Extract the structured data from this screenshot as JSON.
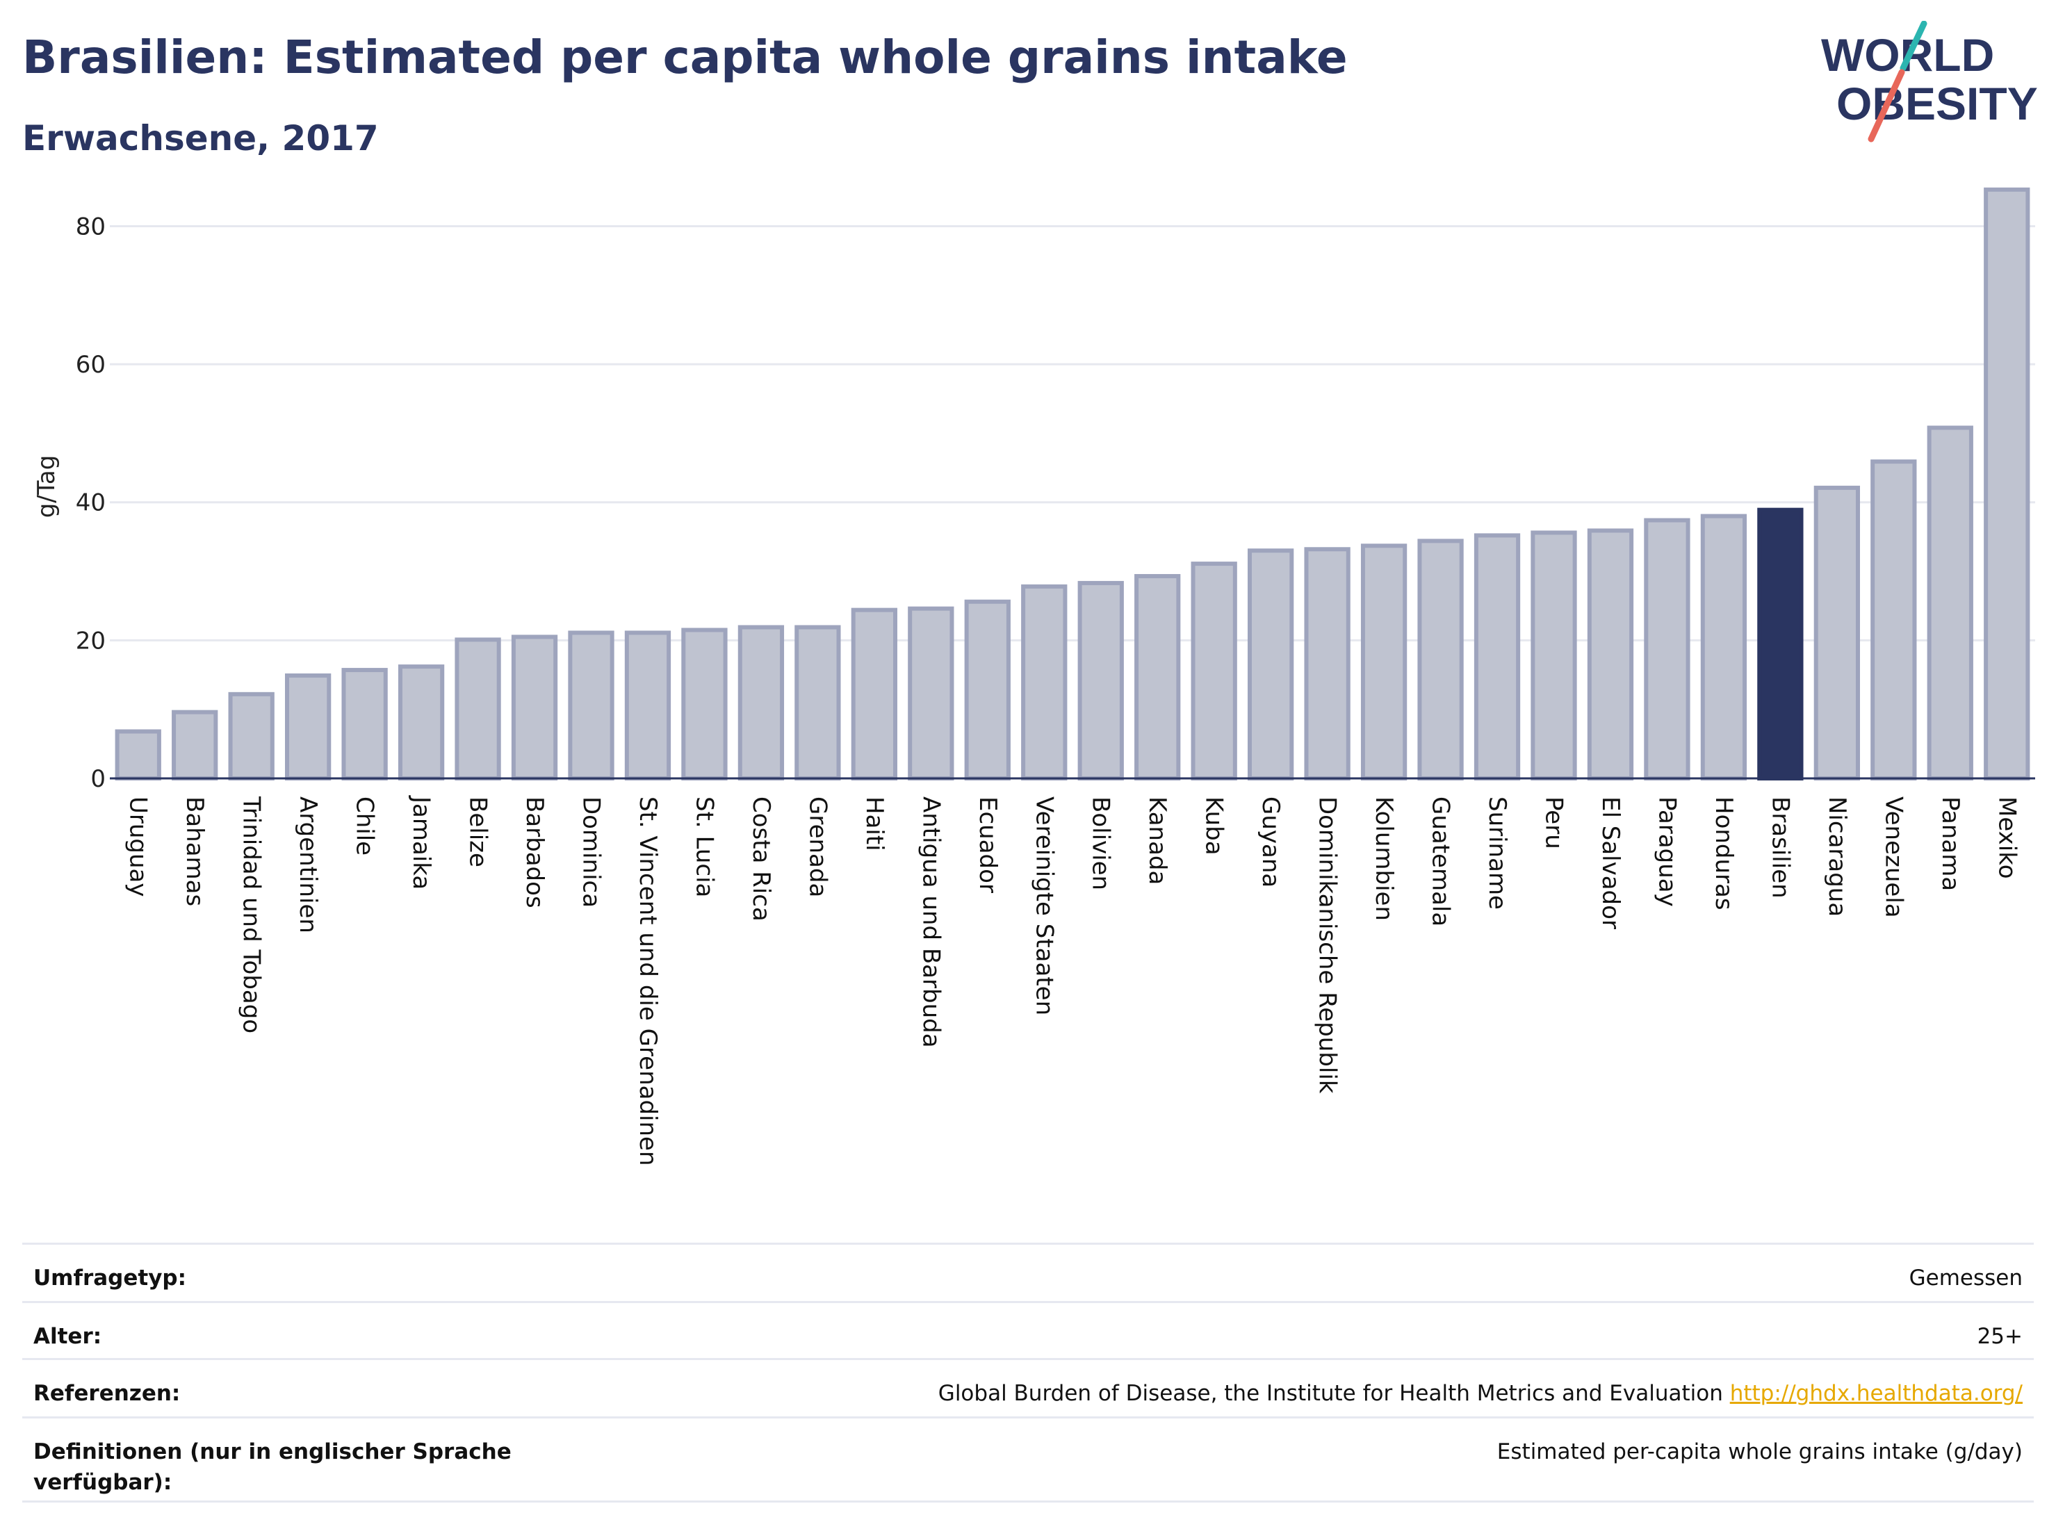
{
  "header": {
    "title": "Brasilien: Estimated per capita whole grains intake",
    "subtitle": "Erwachsene, 2017"
  },
  "logo": {
    "line1": "WORLD",
    "line2": "OBESITY",
    "colors": {
      "text": "#2a3561",
      "slash_top": "#2bb5b0",
      "slash_bottom": "#e8675a"
    }
  },
  "chart_data": {
    "type": "bar",
    "ylabel": "g/Tag",
    "xlabel": "",
    "ylim": [
      0,
      88
    ],
    "yticks": [
      0,
      20,
      40,
      60,
      80
    ],
    "grid": true,
    "highlight": "Brasilien",
    "colors": {
      "bar": "#bfc3d0",
      "bar_edge": "#9ea4bd",
      "highlight": "#2a3561",
      "grid": "#e6e8ef"
    },
    "categories": [
      "Uruguay",
      "Bahamas",
      "Trinidad und Tobago",
      "Argentinien",
      "Chile",
      "Jamaika",
      "Belize",
      "Barbados",
      "Dominica",
      "St. Vincent und die Grenadinen",
      "St. Lucia",
      "Costa Rica",
      "Grenada",
      "Haiti",
      "Antigua und Barbuda",
      "Ecuador",
      "Vereinigte Staaten",
      "Bolivien",
      "Kanada",
      "Kuba",
      "Guyana",
      "Dominikanische Republik",
      "Kolumbien",
      "Guatemala",
      "Suriname",
      "Peru",
      "El Salvador",
      "Paraguay",
      "Honduras",
      "Brasilien",
      "Nicaragua",
      "Venezuela",
      "Panama",
      "Mexiko"
    ],
    "values": [
      6.8,
      9.6,
      12.2,
      14.9,
      15.7,
      16.2,
      20.1,
      20.5,
      21.1,
      21.1,
      21.5,
      21.9,
      21.9,
      24.4,
      24.6,
      25.6,
      27.8,
      28.3,
      29.3,
      31.1,
      33.0,
      33.2,
      33.7,
      34.4,
      35.2,
      35.6,
      35.9,
      37.4,
      38.0,
      38.9,
      42.1,
      45.9,
      50.8,
      85.3
    ]
  },
  "info": [
    {
      "label": "Umfragetyp:",
      "value": "Gemessen",
      "link": ""
    },
    {
      "label": "Alter:",
      "value": "25+",
      "link": ""
    },
    {
      "label": "Referenzen:",
      "value": "Global Burden of Disease, the Institute for Health Metrics and Evaluation",
      "link": "http://ghdx.healthdata.org/"
    },
    {
      "label": "Definitionen (nur in englischer Sprache verfügbar):",
      "value": "Estimated per-capita whole grains intake (g/day)",
      "link": ""
    }
  ]
}
